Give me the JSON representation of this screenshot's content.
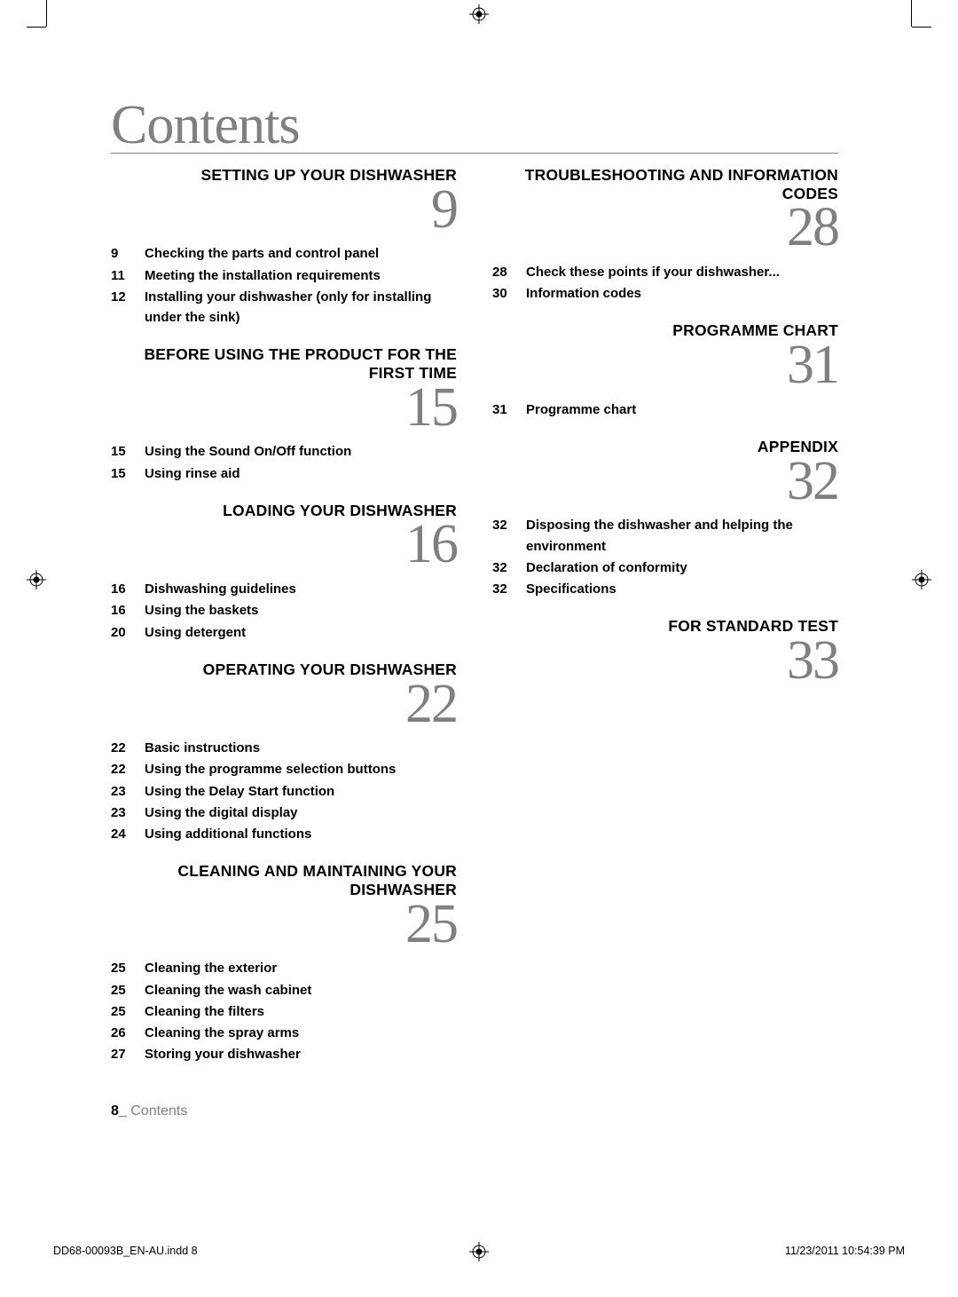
{
  "page_title": "Contents",
  "colors": {
    "text": "#000000",
    "muted": "#808080",
    "background": "#ffffff"
  },
  "typography": {
    "title_font": "Georgia",
    "title_size_pt": 46,
    "section_title_size_pt": 13,
    "bignum_size_pt": 46,
    "body_size_pt": 11
  },
  "left_column": [
    {
      "title": "SETTING UP YOUR DISHWASHER",
      "bignum": "9",
      "entries": [
        {
          "page": "9",
          "text": "Checking the parts and control panel"
        },
        {
          "page": "11",
          "text": "Meeting the installation requirements"
        },
        {
          "page": "12",
          "text": "Installing your dishwasher (only for installing under the sink)"
        }
      ]
    },
    {
      "title": "BEFORE USING THE PRODUCT FOR THE FIRST TIME",
      "bignum": "15",
      "entries": [
        {
          "page": "15",
          "text": "Using the Sound On/Off function"
        },
        {
          "page": "15",
          "text": "Using rinse aid"
        }
      ]
    },
    {
      "title": "LOADING YOUR DISHWASHER",
      "bignum": "16",
      "entries": [
        {
          "page": "16",
          "text": "Dishwashing guidelines"
        },
        {
          "page": "16",
          "text": "Using the baskets"
        },
        {
          "page": "20",
          "text": "Using detergent"
        }
      ]
    },
    {
      "title": "OPERATING YOUR DISHWASHER",
      "bignum": "22",
      "entries": [
        {
          "page": "22",
          "text": "Basic instructions"
        },
        {
          "page": "22",
          "text": "Using the programme selection buttons"
        },
        {
          "page": "23",
          "text": "Using the Delay Start function"
        },
        {
          "page": "23",
          "text": "Using the digital display"
        },
        {
          "page": "24",
          "text": "Using additional functions"
        }
      ]
    },
    {
      "title": "CLEANING AND MAINTAINING YOUR DISHWASHER",
      "bignum": "25",
      "entries": [
        {
          "page": "25",
          "text": "Cleaning the exterior"
        },
        {
          "page": "25",
          "text": "Cleaning the wash cabinet"
        },
        {
          "page": "25",
          "text": "Cleaning the filters"
        },
        {
          "page": "26",
          "text": "Cleaning the spray arms"
        },
        {
          "page": "27",
          "text": "Storing your dishwasher"
        }
      ]
    }
  ],
  "right_column": [
    {
      "title": "TROUBLESHOOTING AND INFORMATION CODES",
      "bignum": "28",
      "entries": [
        {
          "page": "28",
          "text": "Check these points if your dishwasher..."
        },
        {
          "page": "30",
          "text": "Information codes"
        }
      ]
    },
    {
      "title": "PROGRAMME CHART",
      "bignum": "31",
      "entries": [
        {
          "page": "31",
          "text": "Programme chart"
        }
      ]
    },
    {
      "title": "APPENDIX",
      "bignum": "32",
      "entries": [
        {
          "page": "32",
          "text": "Disposing the dishwasher and helping the environment"
        },
        {
          "page": "32",
          "text": "Declaration of conformity"
        },
        {
          "page": "32",
          "text": "Specifications"
        }
      ]
    },
    {
      "title": "FOR STANDARD TEST",
      "bignum": "33",
      "entries": []
    }
  ],
  "footer": {
    "page_number": "8_",
    "label": " Contents"
  },
  "doc_footer": {
    "left": "DD68-00093B_EN-AU.indd   8",
    "right": "11/23/2011   10:54:39 PM"
  }
}
